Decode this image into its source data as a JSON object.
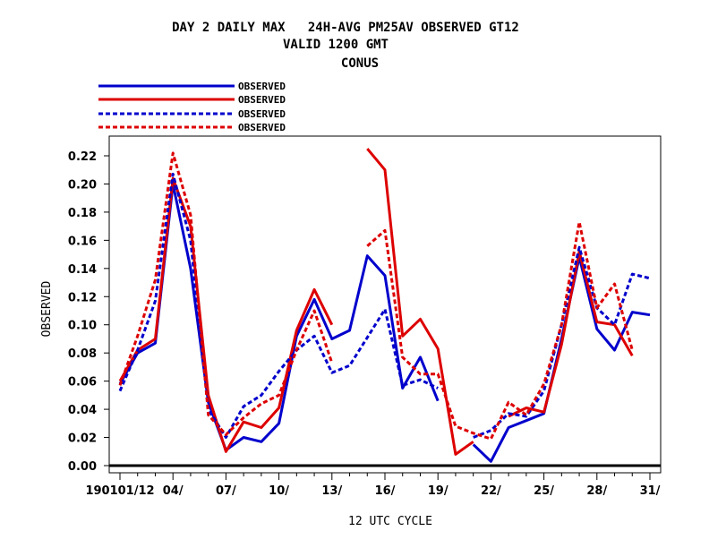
{
  "chart_data": {
    "type": "line",
    "title_lines": [
      "DAY 2 DAILY MAX   24H-AVG PM25AV OBSERVED GT12",
      "VALID 1200 GMT",
      "CONUS"
    ],
    "xlabel": "12 UTC CYCLE",
    "ylabel": "OBSERVED",
    "x": [
      1,
      2,
      3,
      4,
      5,
      6,
      7,
      8,
      9,
      10,
      11,
      12,
      13,
      14,
      15,
      16,
      17,
      18,
      19,
      20,
      21,
      22,
      23,
      24,
      25,
      26,
      27,
      28,
      29,
      30,
      31
    ],
    "xlim": [
      0.5,
      31.5
    ],
    "ylim": [
      -0.005,
      0.235
    ],
    "x_ticks": [
      {
        "x": 1,
        "label": "190101/12"
      },
      {
        "x": 4,
        "label": "04/"
      },
      {
        "x": 7,
        "label": "07/"
      },
      {
        "x": 10,
        "label": "10/"
      },
      {
        "x": 13,
        "label": "13/"
      },
      {
        "x": 16,
        "label": "16/"
      },
      {
        "x": 19,
        "label": "19/"
      },
      {
        "x": 22,
        "label": "22/"
      },
      {
        "x": 25,
        "label": "25/"
      },
      {
        "x": 28,
        "label": "28/"
      },
      {
        "x": 31,
        "label": "31/"
      }
    ],
    "y_ticks": [
      {
        "v": 0.0,
        "label": "0.00"
      },
      {
        "v": 0.02,
        "label": "0.02"
      },
      {
        "v": 0.04,
        "label": "0.04"
      },
      {
        "v": 0.06,
        "label": "0.06"
      },
      {
        "v": 0.08,
        "label": "0.08"
      },
      {
        "v": 0.1,
        "label": "0.10"
      },
      {
        "v": 0.12,
        "label": "0.12"
      },
      {
        "v": 0.14,
        "label": "0.14"
      },
      {
        "v": 0.16,
        "label": "0.16"
      },
      {
        "v": 0.18,
        "label": "0.18"
      },
      {
        "v": 0.2,
        "label": "0.20"
      },
      {
        "v": 0.22,
        "label": "0.22"
      }
    ],
    "series": [
      {
        "name": "OBSERVED",
        "color": "#0000cc",
        "dash": "solid",
        "values": [
          0.058,
          0.08,
          0.087,
          0.2,
          0.14,
          0.045,
          0.011,
          0.02,
          0.017,
          0.03,
          0.092,
          0.118,
          0.09,
          0.096,
          0.149,
          0.135,
          0.055,
          0.077,
          0.046,
          null,
          0.015,
          0.003,
          0.027,
          0.032,
          0.037,
          0.09,
          0.148,
          0.097,
          0.082,
          0.109,
          0.107
        ]
      },
      {
        "name": "OBSERVED",
        "color": "#dd0000",
        "dash": "solid",
        "values": [
          0.06,
          0.082,
          0.09,
          0.204,
          0.17,
          0.05,
          0.01,
          0.031,
          0.027,
          0.041,
          0.096,
          0.125,
          0.1,
          null,
          0.225,
          0.21,
          0.092,
          0.104,
          0.083,
          0.008,
          0.017,
          null,
          0.035,
          0.041,
          0.038,
          0.086,
          0.152,
          0.102,
          0.1,
          0.078,
          null
        ]
      },
      {
        "name": "OBSERVED",
        "color": "#0000cc",
        "dash": "dashed",
        "values": [
          0.053,
          0.082,
          0.117,
          0.207,
          0.16,
          0.04,
          0.02,
          0.042,
          0.05,
          0.067,
          0.082,
          0.092,
          0.066,
          0.071,
          0.091,
          0.111,
          0.057,
          0.061,
          0.055,
          null,
          0.02,
          0.025,
          0.037,
          0.035,
          0.053,
          0.1,
          0.155,
          0.112,
          0.1,
          0.136,
          0.133
        ]
      },
      {
        "name": "OBSERVED",
        "color": "#dd0000",
        "dash": "dashed",
        "values": [
          0.057,
          0.092,
          0.132,
          0.222,
          0.178,
          0.036,
          0.022,
          0.034,
          0.044,
          0.05,
          0.082,
          0.11,
          0.073,
          null,
          0.156,
          0.167,
          0.077,
          0.065,
          0.065,
          0.028,
          0.023,
          0.019,
          0.045,
          0.036,
          0.058,
          0.1,
          0.173,
          0.112,
          0.129,
          0.082,
          null
        ]
      }
    ]
  }
}
